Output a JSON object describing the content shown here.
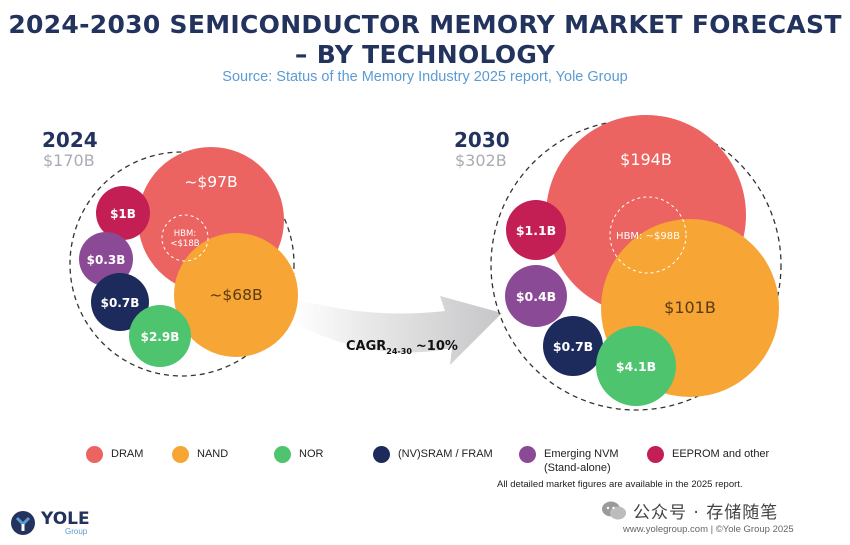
{
  "header": {
    "title_line1": "2024-2030 SEMICONDUCTOR MEMORY MARKET FORECAST",
    "title_line2": "– BY TECHNOLOGY",
    "source": "Source: Status of the Memory Industry 2025 report, Yole Group"
  },
  "chart_data": {
    "type": "bubble",
    "title": "2024-2030 SEMICONDUCTOR MEMORY MARKET FORECAST – BY TECHNOLOGY",
    "unit": "B$",
    "panels": [
      {
        "year": "2024",
        "total_label": "$170B",
        "total": 170,
        "segments": [
          {
            "category": "DRAM",
            "value": 97,
            "label": "~$97B",
            "sub_label": "HBM: <$18B",
            "sub_value": 18
          },
          {
            "category": "NAND",
            "value": 68,
            "label": "~$68B"
          },
          {
            "category": "EEPROM and other",
            "value": 1,
            "label": "$1B"
          },
          {
            "category": "Emerging NVM",
            "value": 0.3,
            "label": "$0.3B"
          },
          {
            "category": "(NV)SRAM / FRAM",
            "value": 0.7,
            "label": "$0.7B"
          },
          {
            "category": "NOR",
            "value": 2.9,
            "label": "$2.9B"
          }
        ]
      },
      {
        "year": "2030",
        "total_label": "$302B",
        "total": 302,
        "segments": [
          {
            "category": "DRAM",
            "value": 194,
            "label": "$194B",
            "sub_label": "HBM: ~$98B",
            "sub_value": 98
          },
          {
            "category": "NAND",
            "value": 101,
            "label": "$101B"
          },
          {
            "category": "EEPROM and other",
            "value": 1.1,
            "label": "$1.1B"
          },
          {
            "category": "Emerging NVM",
            "value": 0.4,
            "label": "$0.4B"
          },
          {
            "category": "(NV)SRAM / FRAM",
            "value": 0.7,
            "label": "$0.7B"
          },
          {
            "category": "NOR",
            "value": 4.1,
            "label": "$4.1B"
          }
        ]
      }
    ],
    "cagr": {
      "prefix": "CAGR",
      "subscript": "24-30",
      "value": "~10%"
    },
    "legend": [
      {
        "name": "DRAM",
        "color": "#ec6461"
      },
      {
        "name": "NAND",
        "color": "#f7a535"
      },
      {
        "name": "NOR",
        "color": "#4ec46e"
      },
      {
        "name": "(NV)SRAM / FRAM",
        "color": "#1d2a5c"
      },
      {
        "name": "Emerging NVM",
        "name_line2": "(Stand-alone)",
        "color": "#8b4a95"
      },
      {
        "name": "EEPROM and other",
        "color": "#c41f55"
      }
    ]
  },
  "footer": {
    "note": "All detailed market figures are available in the 2025 report.",
    "brand": "YOLE",
    "brand_sub": "Group",
    "wechat_label": "公众号 · 存储随笔",
    "credit": "www.yolegroup.com | ©Yole Group 2025"
  }
}
